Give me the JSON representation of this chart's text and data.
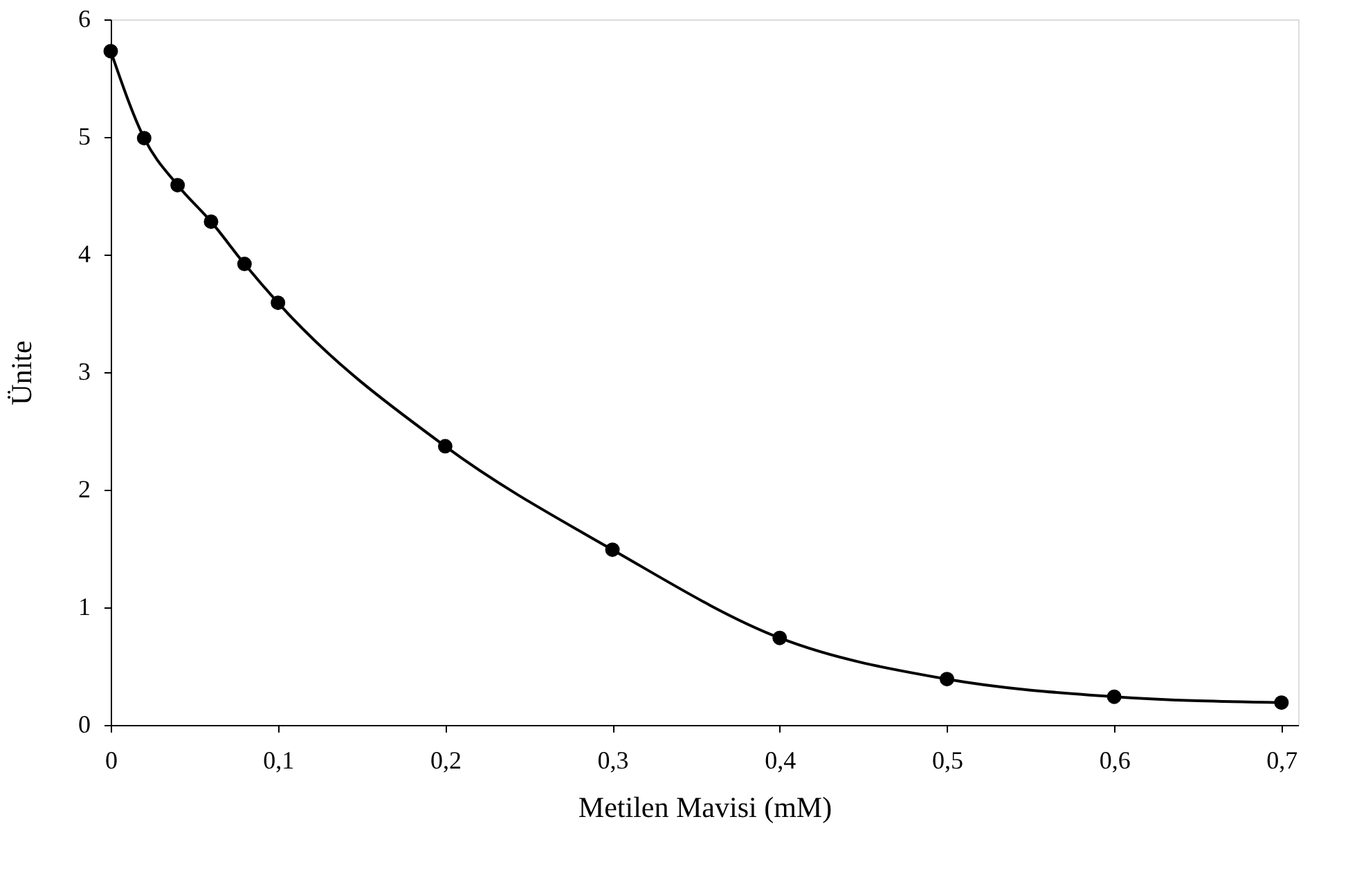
{
  "chart_data": {
    "type": "line",
    "xlabel": "Metilen Mavisi (mM)",
    "ylabel": "Ünite",
    "x": [
      0,
      0.02,
      0.04,
      0.06,
      0.08,
      0.1,
      0.2,
      0.3,
      0.4,
      0.5,
      0.6,
      0.7
    ],
    "series": [
      {
        "color": "#000000",
        "values": [
          5.73,
          4.99,
          4.59,
          4.28,
          3.92,
          3.59,
          2.37,
          1.49,
          0.74,
          0.39,
          0.24,
          0.19
        ]
      }
    ],
    "xlim": [
      0,
      0.71
    ],
    "ylim": [
      0,
      6
    ],
    "xticks": [
      0,
      {
        "value": 0.1,
        "label": "0,1"
      },
      {
        "value": 0.2,
        "label": "0,2"
      },
      {
        "value": 0.3,
        "label": "0,3"
      },
      {
        "value": 0.4,
        "label": "0,4"
      },
      {
        "value": 0.5,
        "label": "0,5"
      },
      {
        "value": 0.6,
        "label": "0,6"
      },
      {
        "value": 0.7,
        "label": "0,7"
      }
    ],
    "yticks": [
      0,
      1,
      2,
      3,
      4,
      5,
      6
    ],
    "marker": "circle",
    "line_style": "solid",
    "grid": false
  }
}
